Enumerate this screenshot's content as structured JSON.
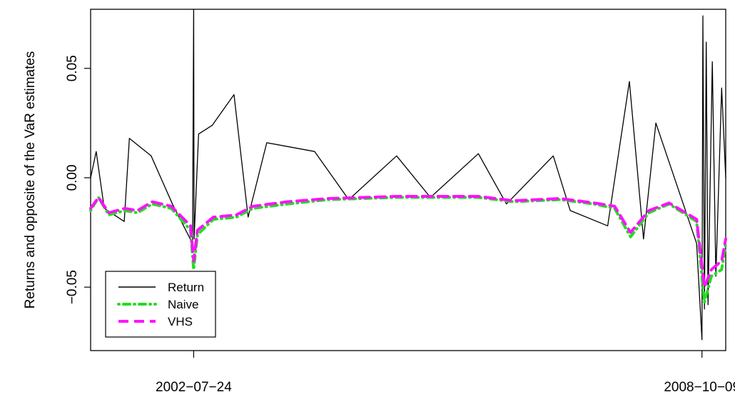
{
  "chart_data": {
    "type": "line",
    "title": "",
    "xlabel": "",
    "ylabel": "Returns and opposite of the VaR estimates",
    "x_ticks": [
      "2002−07−24",
      "2008−10−09"
    ],
    "x_range": [
      "2001-04-20",
      "2009-01-23"
    ],
    "y_ticks": [
      "−0.05",
      "0.00",
      "0.05"
    ],
    "y_tick_values": [
      -0.05,
      0.0,
      0.05
    ],
    "ylim": [
      -0.079,
      0.077
    ],
    "grid": false,
    "legend_position": "bottom-left",
    "series": [
      {
        "name": "Return",
        "color": "#000000",
        "style": "solid",
        "points": [
          [
            "2001-04-20",
            0.0
          ],
          [
            "2001-05-15",
            0.012
          ],
          [
            "2001-06-20",
            -0.014
          ],
          [
            "2001-09-17",
            -0.02
          ],
          [
            "2001-10-10",
            0.018
          ],
          [
            "2002-01-15",
            0.01
          ],
          [
            "2002-04-20",
            -0.012
          ],
          [
            "2002-07-19",
            -0.03
          ],
          [
            "2002-07-24",
            0.077
          ],
          [
            "2002-07-26",
            -0.028
          ],
          [
            "2002-08-15",
            0.02
          ],
          [
            "2002-10-15",
            0.024
          ],
          [
            "2003-01-20",
            0.038
          ],
          [
            "2003-03-24",
            -0.018
          ],
          [
            "2003-06-15",
            0.016
          ],
          [
            "2004-01-15",
            0.012
          ],
          [
            "2004-06-15",
            -0.01
          ],
          [
            "2005-01-15",
            0.01
          ],
          [
            "2005-06-15",
            -0.009
          ],
          [
            "2006-01-15",
            0.011
          ],
          [
            "2006-05-20",
            -0.012
          ],
          [
            "2006-12-15",
            0.01
          ],
          [
            "2007-03-01",
            -0.015
          ],
          [
            "2007-08-15",
            -0.022
          ],
          [
            "2007-11-20",
            0.044
          ],
          [
            "2008-01-22",
            -0.028
          ],
          [
            "2008-03-17",
            0.025
          ],
          [
            "2008-09-15",
            -0.03
          ],
          [
            "2008-10-09",
            -0.074
          ],
          [
            "2008-10-13",
            0.074
          ],
          [
            "2008-10-20",
            -0.06
          ],
          [
            "2008-10-28",
            0.062
          ],
          [
            "2008-11-05",
            -0.058
          ],
          [
            "2008-11-24",
            0.053
          ],
          [
            "2008-12-10",
            -0.045
          ],
          [
            "2009-01-05",
            0.041
          ],
          [
            "2009-01-23",
            0.0
          ]
        ]
      },
      {
        "name": "Naive",
        "color": "#22dd22",
        "style": "dotdash",
        "points": [
          [
            "2001-04-20",
            -0.015
          ],
          [
            "2001-05-25",
            -0.009
          ],
          [
            "2001-07-10",
            -0.017
          ],
          [
            "2001-09-20",
            -0.015
          ],
          [
            "2001-11-15",
            -0.016
          ],
          [
            "2002-01-20",
            -0.012
          ],
          [
            "2002-04-15",
            -0.014
          ],
          [
            "2002-07-10",
            -0.024
          ],
          [
            "2002-07-24",
            -0.042
          ],
          [
            "2002-08-10",
            -0.026
          ],
          [
            "2002-10-20",
            -0.019
          ],
          [
            "2003-01-30",
            -0.018
          ],
          [
            "2003-04-15",
            -0.014
          ],
          [
            "2003-09-15",
            -0.012
          ],
          [
            "2004-03-15",
            -0.01
          ],
          [
            "2005-01-15",
            -0.009
          ],
          [
            "2006-01-15",
            -0.009
          ],
          [
            "2006-06-20",
            -0.011
          ],
          [
            "2007-01-15",
            -0.01
          ],
          [
            "2007-06-15",
            -0.012
          ],
          [
            "2007-09-15",
            -0.014
          ],
          [
            "2007-11-25",
            -0.027
          ],
          [
            "2008-02-15",
            -0.016
          ],
          [
            "2008-05-15",
            -0.012
          ],
          [
            "2008-09-15",
            -0.02
          ],
          [
            "2008-10-20",
            -0.057
          ],
          [
            "2008-11-20",
            -0.045
          ],
          [
            "2009-01-05",
            -0.042
          ],
          [
            "2009-01-23",
            -0.03
          ]
        ]
      },
      {
        "name": "VHS",
        "color": "#ff11ff",
        "style": "longdash",
        "points": [
          [
            "2001-04-20",
            -0.014
          ],
          [
            "2001-05-25",
            -0.009
          ],
          [
            "2001-07-10",
            -0.016
          ],
          [
            "2001-09-20",
            -0.014
          ],
          [
            "2001-11-15",
            -0.015
          ],
          [
            "2002-01-20",
            -0.011
          ],
          [
            "2002-04-15",
            -0.013
          ],
          [
            "2002-07-10",
            -0.022
          ],
          [
            "2002-07-24",
            -0.038
          ],
          [
            "2002-08-10",
            -0.024
          ],
          [
            "2002-10-20",
            -0.018
          ],
          [
            "2003-01-30",
            -0.017
          ],
          [
            "2003-04-15",
            -0.013
          ],
          [
            "2003-09-15",
            -0.011
          ],
          [
            "2004-03-15",
            -0.0095
          ],
          [
            "2005-01-15",
            -0.0085
          ],
          [
            "2006-01-15",
            -0.0085
          ],
          [
            "2006-06-20",
            -0.0105
          ],
          [
            "2007-01-15",
            -0.0095
          ],
          [
            "2007-06-15",
            -0.0115
          ],
          [
            "2007-09-15",
            -0.013
          ],
          [
            "2007-11-25",
            -0.025
          ],
          [
            "2008-02-15",
            -0.015
          ],
          [
            "2008-05-15",
            -0.0115
          ],
          [
            "2008-09-15",
            -0.019
          ],
          [
            "2008-10-20",
            -0.05
          ],
          [
            "2008-11-20",
            -0.042
          ],
          [
            "2009-01-05",
            -0.038
          ],
          [
            "2009-01-23",
            -0.028
          ]
        ]
      }
    ],
    "legend": [
      "Return",
      "Naive",
      "VHS"
    ]
  }
}
